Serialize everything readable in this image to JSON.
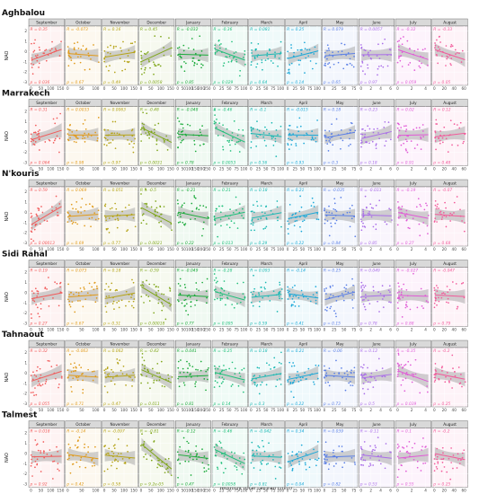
{
  "chart_data": {
    "type": "scatter",
    "xlabel": "Monthly total rainfall (mm)",
    "ylabel": "NAO",
    "y_ticks": [
      "2",
      "1",
      "0",
      "-1",
      "-2",
      "-3"
    ],
    "ylim": [
      -3.3,
      2.5
    ],
    "months": [
      "September",
      "October",
      "November",
      "December",
      "January",
      "February",
      "March",
      "April",
      "May",
      "June",
      "July",
      "August"
    ],
    "month_colors": [
      "#f15a5a",
      "#e09a1a",
      "#b5a317",
      "#7fa61a",
      "#1aaa3a",
      "#1fbf7a",
      "#1ab8b3",
      "#1aa8d8",
      "#5a7fe6",
      "#a96de8",
      "#e05ad6",
      "#f25a9a"
    ],
    "x_tick_labels": [
      [
        "0",
        "50",
        "100",
        "150"
      ],
      [
        "0",
        "50",
        "100"
      ],
      [
        "0",
        "50",
        "100",
        "150"
      ],
      [
        "0",
        "50",
        "100",
        "150"
      ],
      [
        "0",
        "50",
        "100",
        "150",
        "200",
        "250"
      ],
      [
        "0",
        "25",
        "50",
        "75",
        "100"
      ],
      [
        "0",
        "25",
        "50",
        "75",
        "100"
      ],
      [
        "0",
        "25",
        "50",
        "75",
        "100"
      ],
      [
        "0",
        "25",
        "50",
        "75"
      ],
      [
        "0",
        "2",
        "4",
        "6"
      ],
      [
        "0",
        "2",
        "4"
      ],
      [
        "0",
        "20",
        "40",
        "60"
      ]
    ],
    "stations": [
      {
        "name": "Aghbalou",
        "R": [
          "0.35",
          "-0.073",
          "0.16",
          "0.45",
          "-0.032",
          "-0.36",
          "0.081",
          "0.25",
          "0.079",
          "0.0057",
          "-0.32",
          "-0.33"
        ],
        "p": [
          "0.036",
          "0.67",
          "0.49",
          "0.0058",
          "0.85",
          "0.029",
          "0.64",
          "0.14",
          "0.65",
          "0.97",
          "0.059",
          "0.05"
        ]
      },
      {
        "name": "Marrakech",
        "R": [
          "0.31",
          "0.0033",
          "0.0063",
          "-0.48",
          "-0.048",
          "-0.46",
          "-0.1",
          "-0.015",
          "0.18",
          "0.23",
          "0.02",
          "0.12"
        ],
        "p": [
          "0.064",
          "0.98",
          "0.97",
          "0.0031",
          "0.78",
          "0.0053",
          "0.56",
          "0.93",
          "0.3",
          "0.18",
          "0.91",
          "0.48"
        ]
      },
      {
        "name": "N'kouris",
        "R": [
          "0.59",
          "0.069",
          "0.051",
          "-0.5",
          "-0.21",
          "0.21",
          "0.18",
          "0.21",
          "-0.035",
          "-0.033",
          "-0.19",
          "-0.07"
        ],
        "p": [
          "0.00013",
          "0.69",
          "0.77",
          "0.0021",
          "0.22",
          "0.013",
          "0.29",
          "0.22",
          "0.84",
          "0.85",
          "0.27",
          "0.68"
        ]
      },
      {
        "name": "Sidi Rahal",
        "R": [
          "0.19",
          "0.073",
          "0.18",
          "-0.59",
          "-0.049",
          "-0.28",
          "0.093",
          "-0.14",
          "0.25",
          "0.049",
          "-0.027",
          "-0.047"
        ],
        "p": [
          "0.27",
          "0.67",
          "0.31",
          "0.00018",
          "0.77",
          "0.095",
          "0.59",
          "0.41",
          "0.15",
          "0.78",
          "0.88",
          "0.79"
        ]
      },
      {
        "name": "Tahnaout",
        "R": [
          "0.32",
          "-0.063",
          "0.062",
          "-0.42",
          "0.041",
          "-0.25",
          "0.18",
          "0.21",
          "-0.06",
          "0.12",
          "-0.35",
          "-0.2"
        ],
        "p": [
          "0.055",
          "0.71",
          "0.47",
          "0.011",
          "0.81",
          "0.14",
          "0.3",
          "0.22",
          "0.73",
          "0.5",
          "0.039",
          "0.25"
        ]
      },
      {
        "name": "Talmest",
        "R": [
          "0.018",
          "-0.14",
          "-0.097",
          "-0.81",
          "-0.12",
          "-0.46",
          "-0.042",
          "0.34",
          "0.039",
          "-0.11",
          "0.1",
          "-0.2"
        ],
        "p": [
          "0.92",
          "0.42",
          "0.58",
          "9.2e-05",
          "0.47",
          "0.0058",
          "0.81",
          "0.04",
          "0.82",
          "0.53",
          "0.55",
          "0.25"
        ]
      }
    ],
    "R_prefix": "R = ",
    "p_prefix": "p = "
  }
}
